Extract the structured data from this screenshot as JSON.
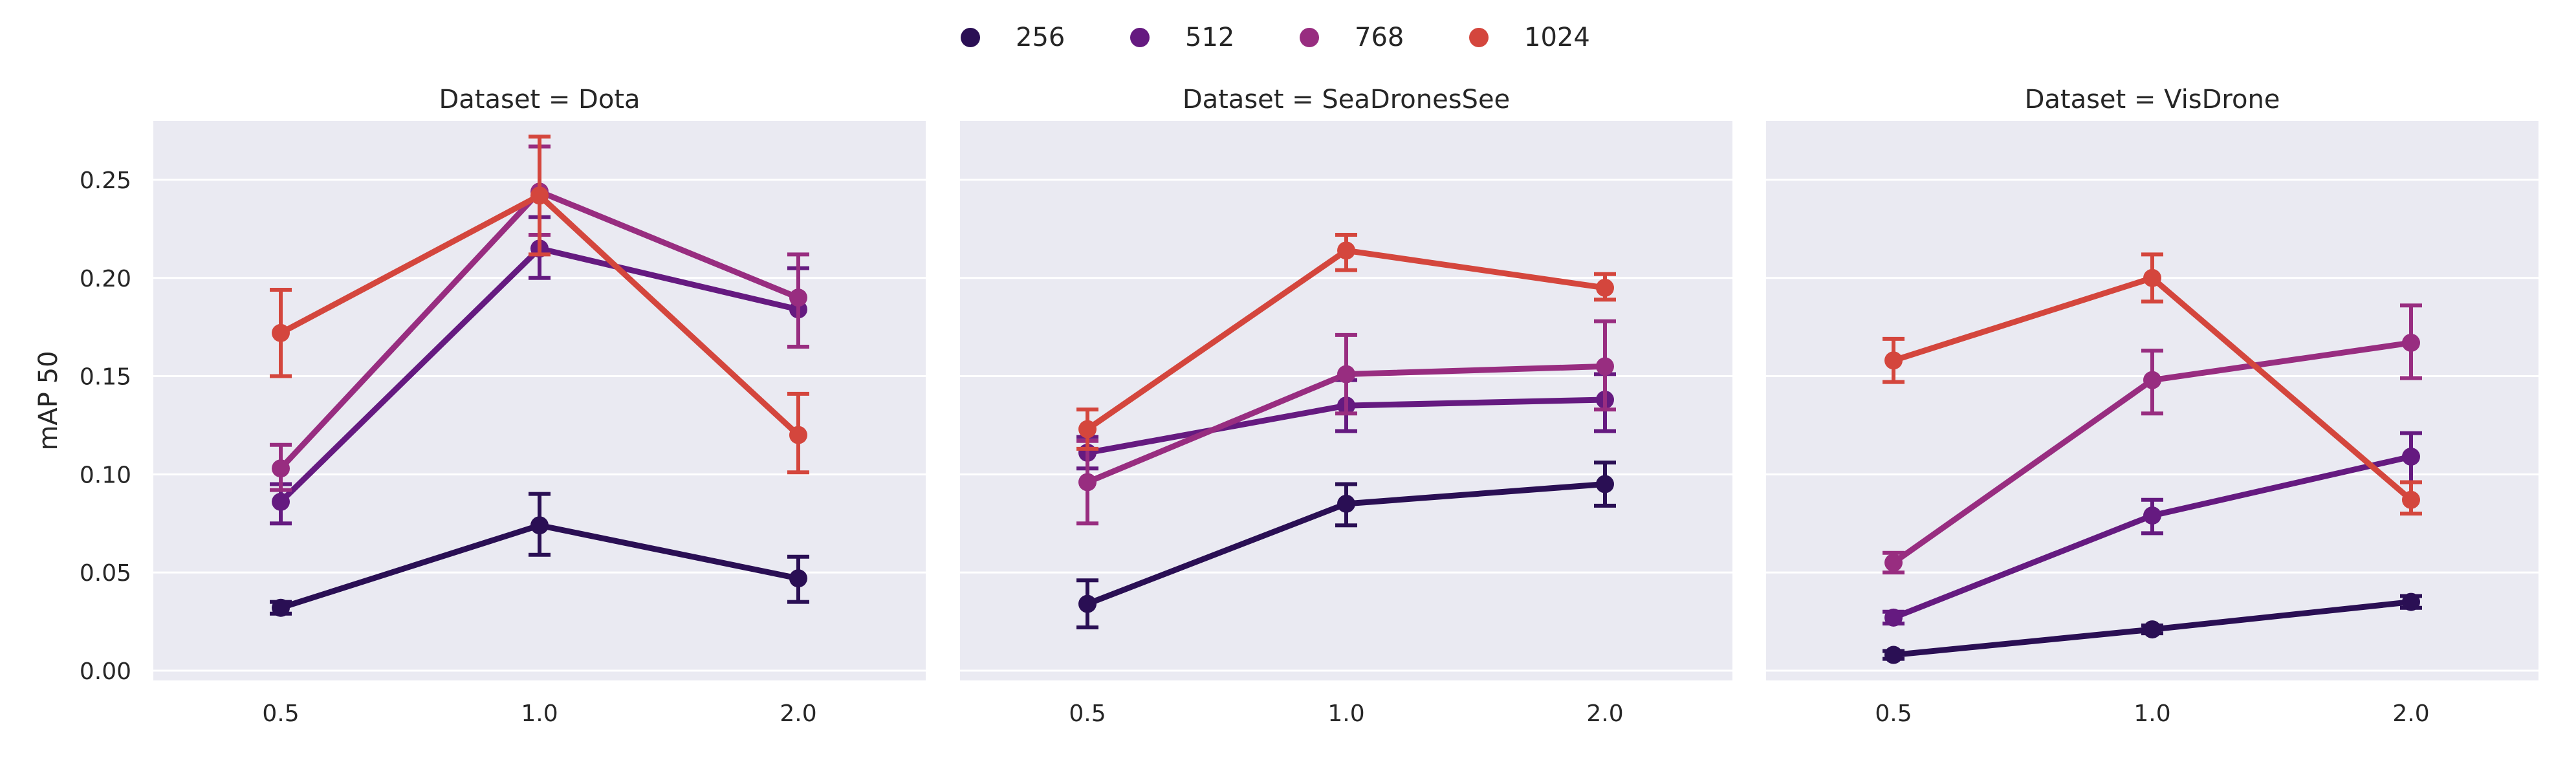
{
  "chart_data": {
    "type": "line",
    "x_categories": [
      "0.5",
      "1.0",
      "2.0"
    ],
    "ylabel": "mAP 50",
    "ylim": [
      -0.005,
      0.28
    ],
    "yticks": [
      0.0,
      0.05,
      0.1,
      0.15,
      0.2,
      0.25
    ],
    "ytick_labels": [
      "0.00",
      "0.05",
      "0.10",
      "0.15",
      "0.20",
      "0.25"
    ],
    "grid": true,
    "legend": {
      "placement": "top-center",
      "entries": [
        "256",
        "512",
        "768",
        "1024"
      ]
    },
    "series_colors": [
      "#2a0f54",
      "#651a80",
      "#982d80",
      "#d4463d"
    ],
    "panels": [
      {
        "title": "Dataset = Dota",
        "series": [
          {
            "name": "256",
            "values": [
              0.032,
              0.074,
              0.047
            ],
            "err_low": [
              0.029,
              0.059,
              0.035
            ],
            "err_high": [
              0.035,
              0.09,
              0.058
            ]
          },
          {
            "name": "512",
            "values": [
              0.086,
              0.215,
              0.184
            ],
            "err_low": [
              0.075,
              0.2,
              0.165
            ],
            "err_high": [
              0.095,
              0.231,
              0.205
            ]
          },
          {
            "name": "768",
            "values": [
              0.103,
              0.244,
              0.19
            ],
            "err_low": [
              0.092,
              0.222,
              0.165
            ],
            "err_high": [
              0.115,
              0.267,
              0.212
            ]
          },
          {
            "name": "1024",
            "values": [
              0.172,
              0.242,
              0.12
            ],
            "err_low": [
              0.15,
              0.212,
              0.101
            ],
            "err_high": [
              0.194,
              0.272,
              0.141
            ]
          }
        ]
      },
      {
        "title": "Dataset = SeaDronesSee",
        "series": [
          {
            "name": "256",
            "values": [
              0.034,
              0.085,
              0.095
            ],
            "err_low": [
              0.022,
              0.074,
              0.084
            ],
            "err_high": [
              0.046,
              0.095,
              0.106
            ]
          },
          {
            "name": "512",
            "values": [
              0.111,
              0.135,
              0.138
            ],
            "err_low": [
              0.103,
              0.122,
              0.122
            ],
            "err_high": [
              0.119,
              0.148,
              0.151
            ]
          },
          {
            "name": "768",
            "values": [
              0.096,
              0.151,
              0.155
            ],
            "err_low": [
              0.075,
              0.131,
              0.133
            ],
            "err_high": [
              0.117,
              0.171,
              0.178
            ]
          },
          {
            "name": "1024",
            "values": [
              0.123,
              0.214,
              0.195
            ],
            "err_low": [
              0.113,
              0.204,
              0.189
            ],
            "err_high": [
              0.133,
              0.222,
              0.202
            ]
          }
        ]
      },
      {
        "title": "Dataset = VisDrone",
        "series": [
          {
            "name": "256",
            "values": [
              0.008,
              0.021,
              0.035
            ],
            "err_low": [
              0.006,
              0.019,
              0.032
            ],
            "err_high": [
              0.01,
              0.023,
              0.038
            ]
          },
          {
            "name": "512",
            "values": [
              0.027,
              0.079,
              0.109
            ],
            "err_low": [
              0.024,
              0.07,
              0.096
            ],
            "err_high": [
              0.03,
              0.087,
              0.121
            ]
          },
          {
            "name": "768",
            "values": [
              0.055,
              0.148,
              0.167
            ],
            "err_low": [
              0.05,
              0.131,
              0.149
            ],
            "err_high": [
              0.06,
              0.163,
              0.186
            ]
          },
          {
            "name": "1024",
            "values": [
              0.158,
              0.2,
              0.087
            ],
            "err_low": [
              0.147,
              0.188,
              0.08
            ],
            "err_high": [
              0.169,
              0.212,
              0.096
            ]
          }
        ]
      }
    ]
  }
}
